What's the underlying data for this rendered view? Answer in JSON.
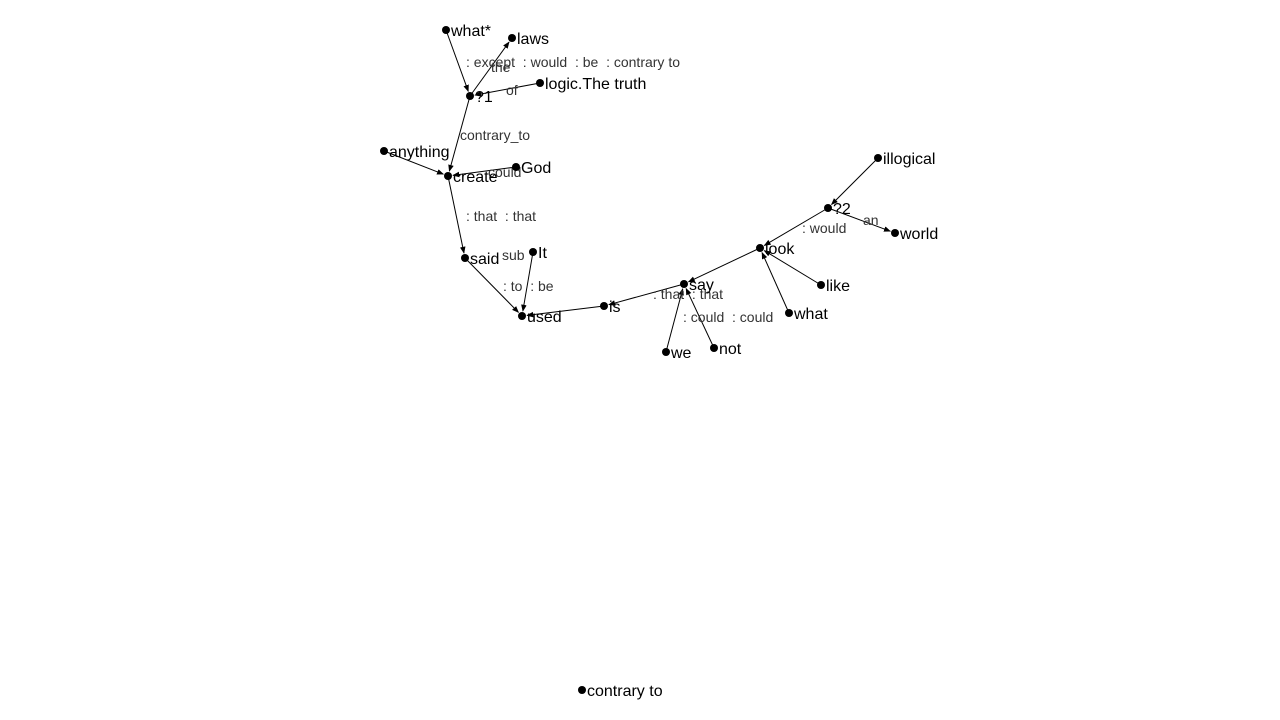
{
  "graph": {
    "nodes": [
      {
        "id": "what_star",
        "label": "what*"
      },
      {
        "id": "laws",
        "label": "laws"
      },
      {
        "id": "q1",
        "label": "?1"
      },
      {
        "id": "logic",
        "label": "logic.The truth"
      },
      {
        "id": "anything",
        "label": "anything"
      },
      {
        "id": "create",
        "label": "create"
      },
      {
        "id": "god",
        "label": "God"
      },
      {
        "id": "said",
        "label": "said"
      },
      {
        "id": "it",
        "label": "It"
      },
      {
        "id": "used",
        "label": "used"
      },
      {
        "id": "is",
        "label": "is"
      },
      {
        "id": "say",
        "label": "say"
      },
      {
        "id": "we",
        "label": "we"
      },
      {
        "id": "not",
        "label": "not"
      },
      {
        "id": "look",
        "label": "look"
      },
      {
        "id": "what",
        "label": "what"
      },
      {
        "id": "like",
        "label": "like"
      },
      {
        "id": "q2",
        "label": "?2"
      },
      {
        "id": "illogical",
        "label": "illogical"
      },
      {
        "id": "world",
        "label": "world"
      },
      {
        "id": "contrary_to_node",
        "label": "contrary to"
      }
    ],
    "edges": [
      {
        "from": "what_star",
        "to": "q1"
      },
      {
        "from": "q1",
        "to": "laws",
        "label": "the"
      },
      {
        "from": "logic",
        "to": "q1",
        "label": "of"
      },
      {
        "from": "q1",
        "to": "create",
        "label": "contrary_to"
      },
      {
        "from": "anything",
        "to": "create"
      },
      {
        "from": "god",
        "to": "create",
        "label": "could"
      },
      {
        "from": "create",
        "to": "said"
      },
      {
        "from": "said",
        "to": "used"
      },
      {
        "from": "it",
        "to": "used",
        "label": "sub"
      },
      {
        "from": "is",
        "to": "used"
      },
      {
        "from": "say",
        "to": "is"
      },
      {
        "from": "we",
        "to": "say"
      },
      {
        "from": "not",
        "to": "say"
      },
      {
        "from": "look",
        "to": "say"
      },
      {
        "from": "what",
        "to": "look"
      },
      {
        "from": "like",
        "to": "look"
      },
      {
        "from": "q2",
        "to": "look"
      },
      {
        "from": "illogical",
        "to": "q2"
      },
      {
        "from": "q2",
        "to": "world",
        "label": "an"
      }
    ],
    "annotations": [
      {
        "id": "ann-except",
        "text": ": except  : would  : be  : contrary to"
      },
      {
        "id": "ann-that-that-1",
        "text": ": that  : that"
      },
      {
        "id": "ann-to-be",
        "text": ": to  : be"
      },
      {
        "id": "ann-that-that-2",
        "text": ": that  : that"
      },
      {
        "id": "ann-could-could",
        "text": ": could  : could"
      },
      {
        "id": "ann-would",
        "text": ": would"
      }
    ]
  }
}
